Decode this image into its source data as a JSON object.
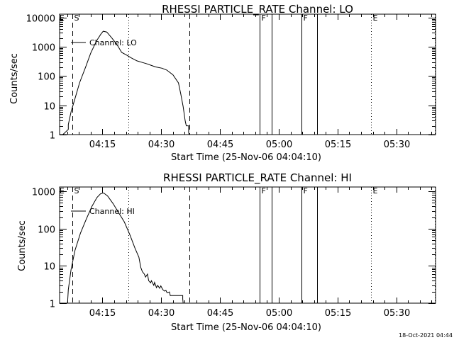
{
  "chart_data": [
    {
      "type": "line",
      "title": "RHESSI PARTICLE_RATE Channel: LO",
      "xlabel": "Start Time (25-Nov-06 04:04:10)",
      "ylabel": "Counts/sec",
      "yscale": "log",
      "xlim": [
        4.07,
        100.0
      ],
      "ylim": [
        1,
        13000
      ],
      "x_ticks": [
        {
          "x": 15,
          "label": "04:15"
        },
        {
          "x": 30,
          "label": "04:30"
        },
        {
          "x": 45,
          "label": "04:45"
        },
        {
          "x": 60,
          "label": "05:00"
        },
        {
          "x": 75,
          "label": "05:15"
        },
        {
          "x": 90,
          "label": "05:30"
        }
      ],
      "y_ticks": [
        {
          "y": 1,
          "label": "1"
        },
        {
          "y": 10,
          "label": "10"
        },
        {
          "y": 100,
          "label": "100"
        },
        {
          "y": 1000,
          "label": "1000"
        },
        {
          "y": 10000,
          "label": "10000"
        }
      ],
      "legend": {
        "label": "Channel: LO",
        "placement": "top-left"
      },
      "series": [
        {
          "name": "Channel: LO",
          "x": [
            4.9,
            6.3,
            6.3,
            7.0,
            8.0,
            9.2,
            10.7,
            12.0,
            13.5,
            14.6,
            15.2,
            16.1,
            17.4,
            18.7,
            19.9,
            21.2,
            22.3,
            23.8,
            25.2,
            26.4,
            27.5,
            28.6,
            30.2,
            31.4,
            33.0,
            34.4,
            35.0,
            35.6,
            36.1,
            36.4,
            37.0,
            37.0,
            37.1
          ],
          "y": [
            1.0,
            1.5,
            2.2,
            6.0,
            17,
            60,
            200,
            600,
            1600,
            2700,
            3400,
            3200,
            2000,
            1200,
            640,
            520,
            420,
            330,
            290,
            260,
            230,
            205,
            185,
            160,
            110,
            58,
            24,
            9,
            3.0,
            2.0,
            2.0,
            1.2,
            1.0
          ]
        }
      ],
      "vlines": [
        {
          "x": 7.3,
          "style": "dashed",
          "label": "S"
        },
        {
          "x": 21.7,
          "style": "dotted",
          "label": ""
        },
        {
          "x": 37.2,
          "style": "dashed",
          "label": ""
        },
        {
          "x": 55.1,
          "style": "solid",
          "label": "F"
        },
        {
          "x": 58.1,
          "style": "solid",
          "label": ""
        },
        {
          "x": 65.8,
          "style": "solid",
          "label": "F"
        },
        {
          "x": 69.8,
          "style": "solid",
          "label": ""
        },
        {
          "x": 83.6,
          "style": "dotted",
          "label": "E"
        },
        {
          "x": 99.9,
          "style": "dotted",
          "label": ""
        }
      ],
      "marks": [
        {
          "x": 4.6,
          "label": "E"
        }
      ]
    },
    {
      "type": "line",
      "title": "RHESSI PARTICLE_RATE Channel: HI",
      "xlabel": "Start Time (25-Nov-06 04:04:10)",
      "ylabel": "Counts/sec",
      "yscale": "log",
      "xlim": [
        4.07,
        100.0
      ],
      "ylim": [
        1,
        1300
      ],
      "x_ticks": [
        {
          "x": 15,
          "label": "04:15"
        },
        {
          "x": 30,
          "label": "04:30"
        },
        {
          "x": 45,
          "label": "04:45"
        },
        {
          "x": 60,
          "label": "05:00"
        },
        {
          "x": 75,
          "label": "05:15"
        },
        {
          "x": 90,
          "label": "05:30"
        }
      ],
      "y_ticks": [
        {
          "y": 1,
          "label": "1"
        },
        {
          "y": 10,
          "label": "10"
        },
        {
          "y": 100,
          "label": "100"
        },
        {
          "y": 1000,
          "label": "1000"
        }
      ],
      "legend": {
        "label": "Channel: HI",
        "placement": "top-left"
      },
      "series": [
        {
          "name": "Channel: HI",
          "x": [
            5.6,
            6.1,
            6.3,
            7.0,
            8.0,
            9.4,
            10.9,
            12.3,
            13.6,
            14.5,
            15.3,
            16.3,
            17.7,
            19.1,
            20.6,
            22.0,
            23.3,
            24.3,
            24.8,
            25.2,
            25.7,
            26.0,
            26.5,
            26.8,
            27.3,
            27.5,
            28.1,
            28.3,
            28.8,
            29.1,
            29.6,
            29.9,
            30.4,
            30.9,
            31.2,
            31.5,
            32.1,
            32.3,
            32.9,
            33.4,
            33.8,
            34.2,
            34.6,
            35.5,
            35.5,
            35.6
          ],
          "y": [
            1.0,
            1.0,
            2.3,
            8.0,
            26,
            75,
            180,
            390,
            680,
            850,
            900,
            750,
            470,
            270,
            150,
            68,
            30,
            17,
            9.0,
            7.0,
            6.0,
            5.0,
            6.0,
            4.0,
            3.5,
            4.0,
            3.0,
            3.6,
            2.6,
            3.0,
            2.5,
            2.9,
            2.3,
            2.1,
            2.2,
            1.9,
            2.0,
            1.6,
            1.6,
            1.6,
            1.6,
            1.6,
            1.6,
            1.6,
            1.3,
            1.0
          ]
        }
      ],
      "vlines": [
        {
          "x": 7.3,
          "style": "dashed",
          "label": "S"
        },
        {
          "x": 21.7,
          "style": "dotted",
          "label": ""
        },
        {
          "x": 37.2,
          "style": "dashed",
          "label": ""
        },
        {
          "x": 55.1,
          "style": "solid",
          "label": "F"
        },
        {
          "x": 58.1,
          "style": "solid",
          "label": ""
        },
        {
          "x": 65.8,
          "style": "solid",
          "label": "F"
        },
        {
          "x": 69.8,
          "style": "solid",
          "label": ""
        },
        {
          "x": 83.6,
          "style": "dotted",
          "label": "E"
        },
        {
          "x": 99.9,
          "style": "dotted",
          "label": ""
        }
      ],
      "marks": [
        {
          "x": 4.6,
          "label": "E"
        }
      ]
    }
  ],
  "footer": {
    "timestamp": "18-Oct-2021 04:44"
  }
}
